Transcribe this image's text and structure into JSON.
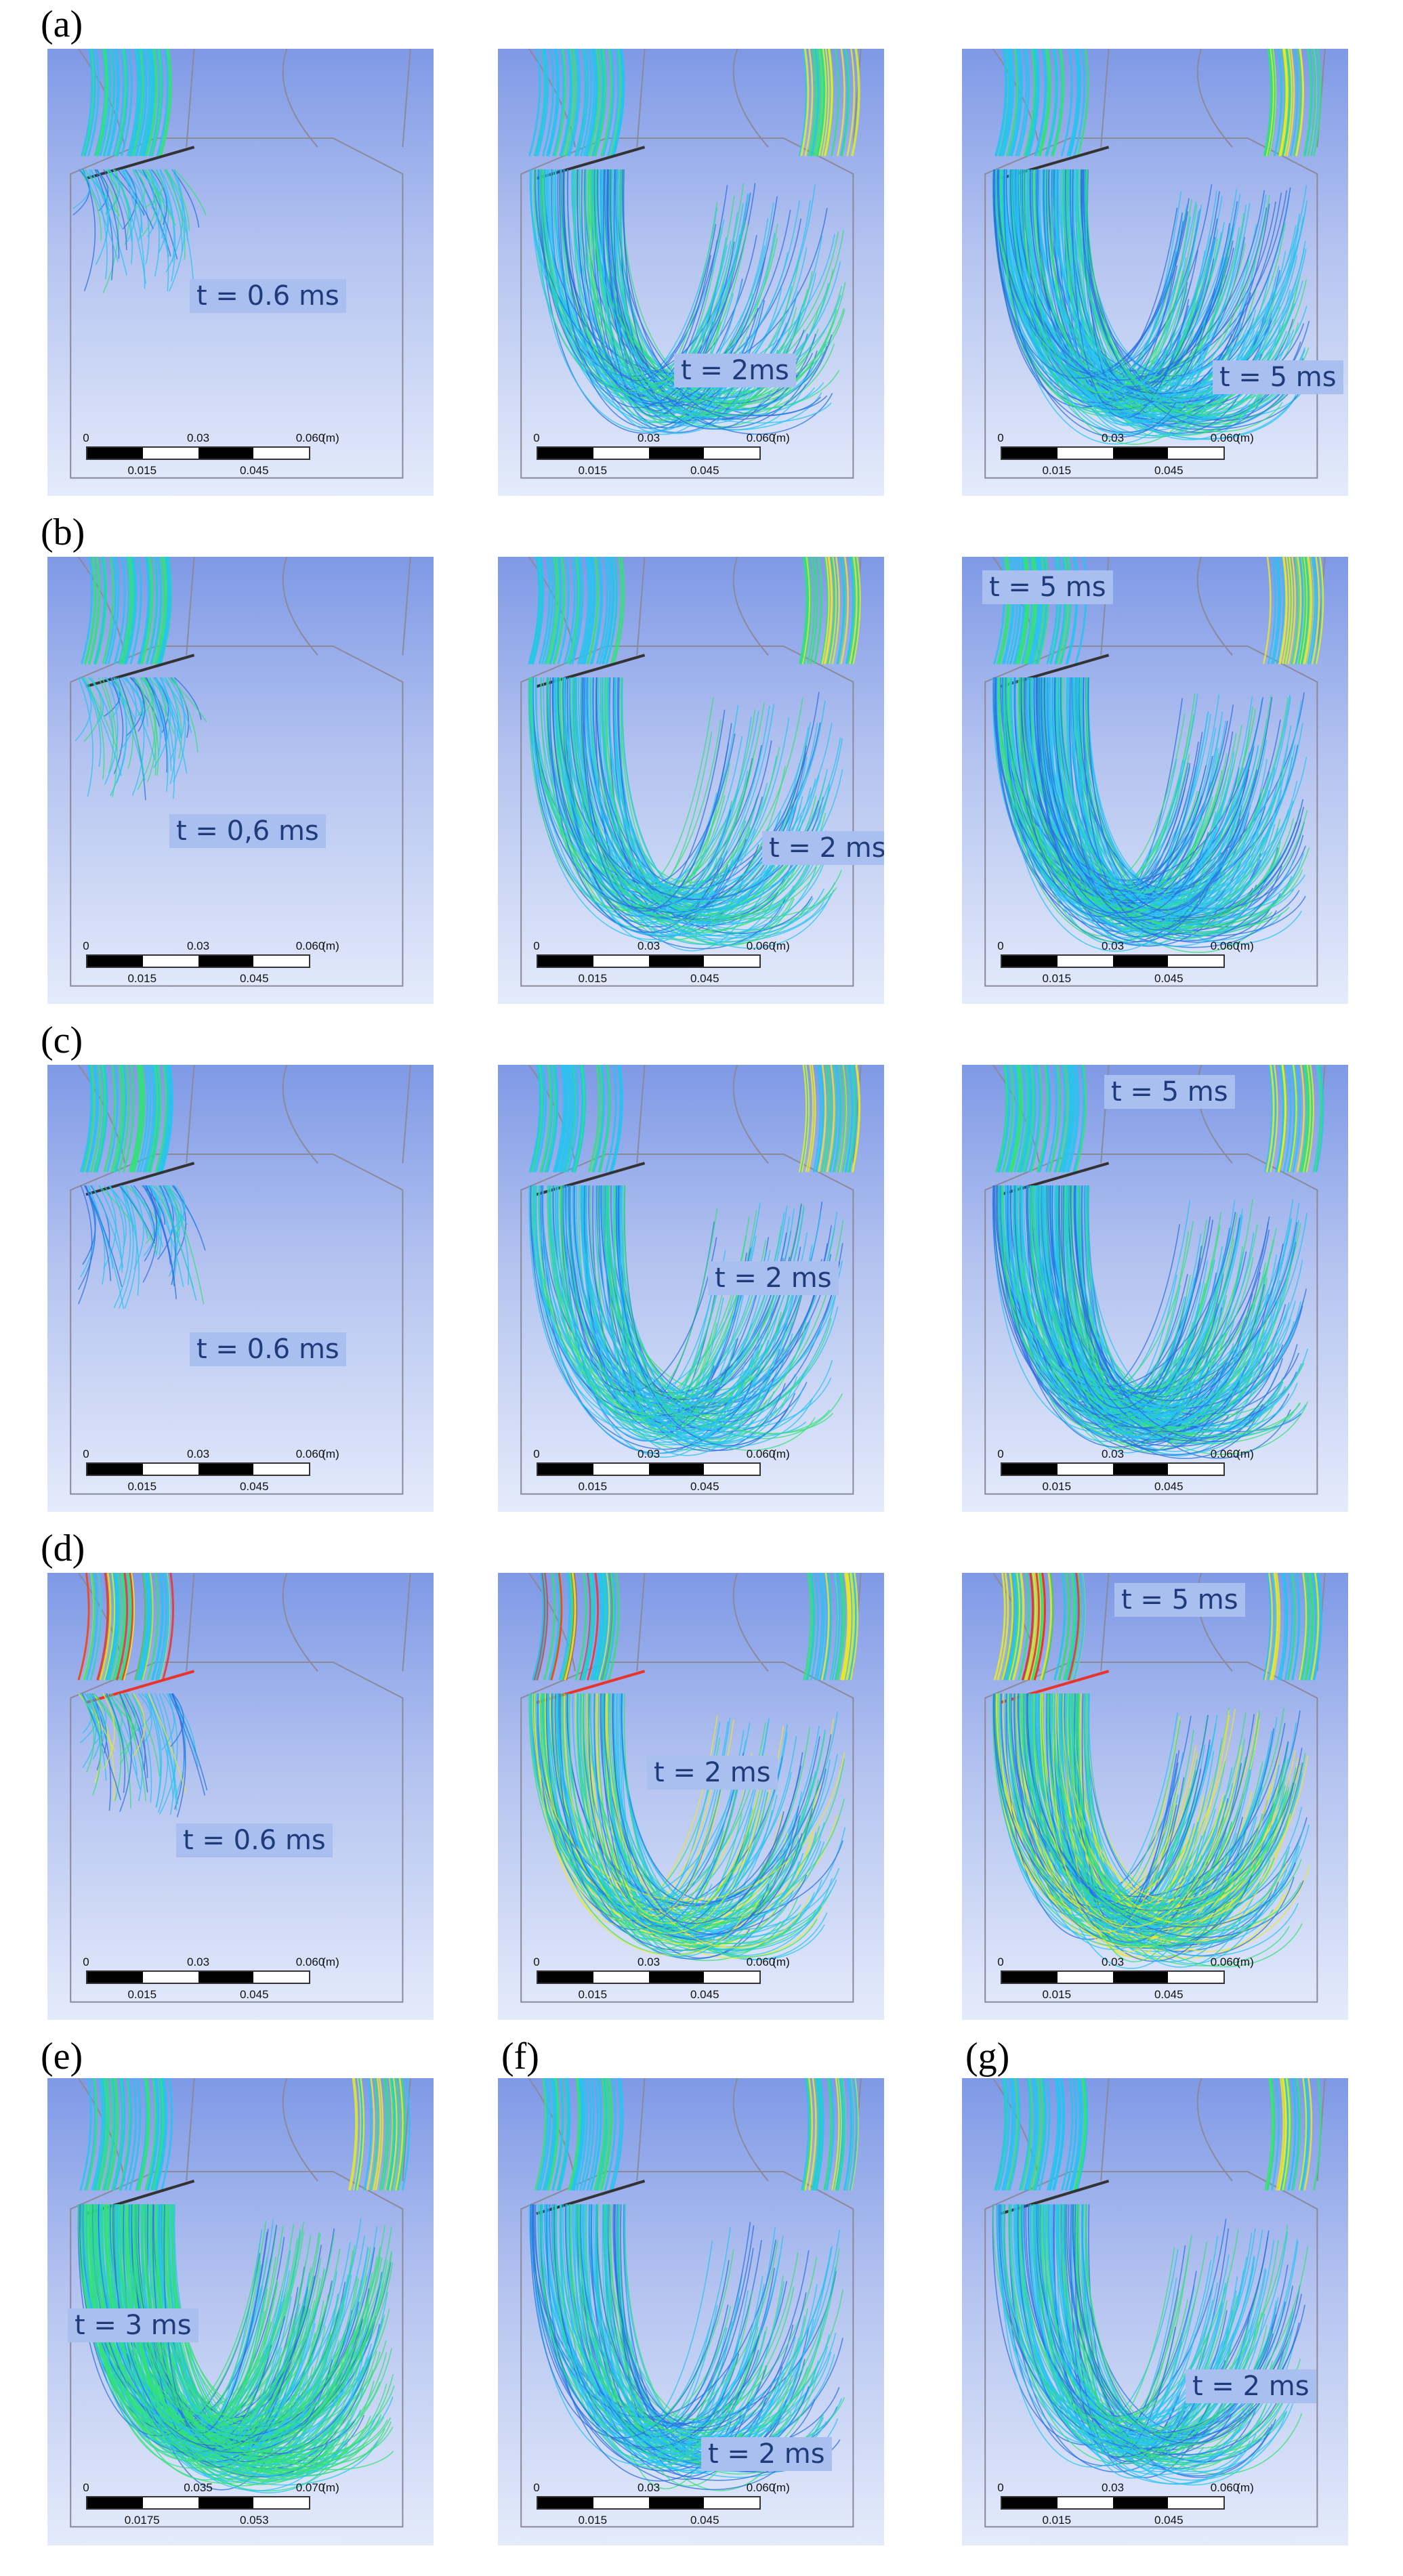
{
  "figure": {
    "rows": [
      {
        "label": "(a)",
        "panels": [
          {
            "time": "t = 0.6 ms",
            "scale": [
              "0",
              "0.03",
              "0.060",
              "(m)",
              "0.015",
              "0.045"
            ],
            "flow": "small"
          },
          {
            "time": "t = 2ms",
            "scale": [
              "0",
              "0.03",
              "0.060",
              "(m)",
              "0.015",
              "0.045"
            ],
            "flow": "medium"
          },
          {
            "time": "t = 5 ms",
            "scale": [
              "0",
              "0.03",
              "0.060",
              "(m)",
              "0.015",
              "0.045"
            ],
            "flow": "large"
          }
        ]
      },
      {
        "label": "(b)",
        "panels": [
          {
            "time": "t = 0,6 ms",
            "scale": [
              "0",
              "0.03",
              "0.060",
              "(m)",
              "0.015",
              "0.045"
            ],
            "flow": "small"
          },
          {
            "time": "t = 2 ms",
            "scale": [
              "0",
              "0.03",
              "0.060",
              "(m)",
              "0.015",
              "0.045"
            ],
            "flow": "medium"
          },
          {
            "time": "t = 5 ms",
            "scale": [
              "0",
              "0.03",
              "0.060",
              "(m)",
              "0.015",
              "0.045"
            ],
            "flow": "large"
          }
        ]
      },
      {
        "label": "(c)",
        "panels": [
          {
            "time": "t = 0.6 ms",
            "scale": [
              "0",
              "0.03",
              "0.060",
              "(m)",
              "0.015",
              "0.045"
            ],
            "flow": "small"
          },
          {
            "time": "t = 2 ms",
            "scale": [
              "0",
              "0.03",
              "0.060",
              "(m)",
              "0.015",
              "0.045"
            ],
            "flow": "medium"
          },
          {
            "time": "t = 5 ms",
            "scale": [
              "0",
              "0.03",
              "0.060",
              "(m)",
              "0.015",
              "0.045"
            ],
            "flow": "large"
          }
        ]
      },
      {
        "label": "(d)",
        "panels": [
          {
            "time": "t = 0.6 ms",
            "scale": [
              "0",
              "0.03",
              "0.060",
              "(m)",
              "0.015",
              "0.045"
            ],
            "flow": "small-hot"
          },
          {
            "time": "t = 2 ms",
            "scale": [
              "0",
              "0.03",
              "0.060",
              "(m)",
              "0.015",
              "0.045"
            ],
            "flow": "medium-hot"
          },
          {
            "time": "t = 5 ms",
            "scale": [
              "0",
              "0.03",
              "0.060",
              "(m)",
              "0.015",
              "0.045"
            ],
            "flow": "large-hot"
          }
        ]
      }
    ],
    "bottom": [
      {
        "label": "(e)",
        "time": "t = 3 ms",
        "scale": [
          "0",
          "0.035",
          "0.070",
          "(m)",
          "0.0175",
          "0.053"
        ],
        "flow": "full"
      },
      {
        "label": "(f)",
        "time": "t = 2 ms",
        "scale": [
          "0",
          "0.03",
          "0.060",
          "(m)",
          "0.015",
          "0.045"
        ],
        "flow": "medium-f"
      },
      {
        "label": "(g)",
        "time": "t = 2 ms",
        "scale": [
          "0",
          "0.03",
          "0.060",
          "(m)",
          "0.015",
          "0.045"
        ],
        "flow": "medium-g"
      }
    ],
    "colors": {
      "background_top": "#7f99e6",
      "background_bottom": "#e4ebfb",
      "streamline_blue": "#2a6fe0",
      "streamline_cyan": "#27c3f0",
      "streamline_green": "#33e07a",
      "streamline_yellow": "#e8e82a",
      "streamline_red": "#e8342a"
    }
  }
}
